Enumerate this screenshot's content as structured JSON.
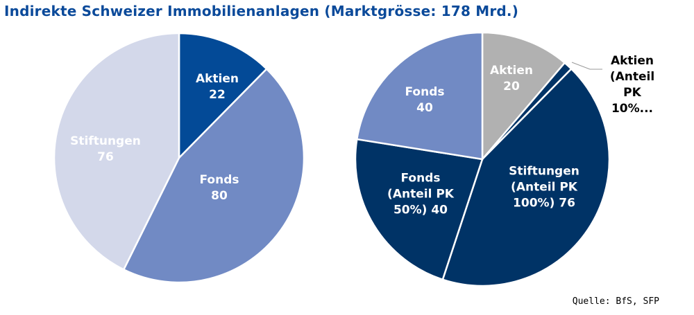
{
  "chart_data": [
    {
      "type": "pie",
      "title": "Indirekte Schweizer Immobilienanlagen (Marktgrösse: 178 Mrd.)",
      "start": "top, clockwise",
      "slices": [
        {
          "label": "Aktien",
          "value": 22,
          "color": "#034a97"
        },
        {
          "label": "Fonds",
          "value": 80,
          "color": "#718ac4"
        },
        {
          "label": "Stiftungen",
          "value": 76,
          "color": "#d3d8ea"
        }
      ]
    },
    {
      "type": "pie",
      "start": "top, clockwise",
      "slices": [
        {
          "label": "Aktien",
          "value": 20,
          "color": "#b1b1b1"
        },
        {
          "label": "Aktien (Anteil PK 10%...",
          "value": 2,
          "color": "#003366"
        },
        {
          "label": "Stiftungen (Anteil PK 100%)",
          "value": 76,
          "color": "#003366"
        },
        {
          "label": "Fonds (Anteil PK 50%)",
          "value": 40,
          "color": "#003366"
        },
        {
          "label": "Fonds",
          "value": 40,
          "color": "#718ac4"
        }
      ]
    }
  ],
  "labels": {
    "l_aktien": [
      "Aktien",
      "22"
    ],
    "l_fonds": [
      "Fonds",
      "80"
    ],
    "l_stift": [
      "Stiftungen",
      "76"
    ],
    "r_aktien": [
      "Aktien",
      "20"
    ],
    "r_aktien_pk": [
      "Aktien",
      "(Anteil",
      "PK",
      "10%..."
    ],
    "r_stift": [
      "Stiftungen",
      "(Anteil PK",
      "100%) 76"
    ],
    "r_fonds_pk": [
      "Fonds",
      "(Anteil PK",
      "50%) 40"
    ],
    "r_fonds": [
      "Fonds",
      "40"
    ]
  },
  "source": "Quelle: BfS, SFP"
}
